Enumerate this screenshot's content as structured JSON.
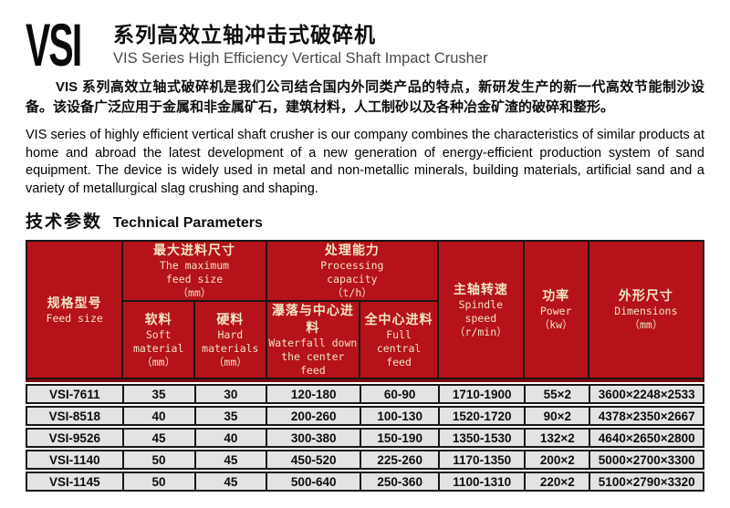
{
  "header": {
    "logo": "VSI",
    "title_zh": "系列高效立轴冲击式破碎机",
    "title_en": "VIS Series High Efficiency Vertical Shaft Impact Crusher"
  },
  "intro": {
    "zh": "VIS 系列高效立轴式破碎机是我们公司结合国内外同类产品的特点，新研发生产的新一代高效节能制沙设备。该设备广泛应用于金属和非金属矿石，建筑材料，人工制砂以及各种冶金矿渣的破碎和整形。",
    "en": "VIS series of highly efficient vertical shaft crusher is our company combines the characteristics of similar products at home and abroad the latest development of a new generation of energy-efficient production system of sand equipment. The device is widely used in metal and non-metallic minerals, building materials, artificial sand and a variety of metallurgical slag crushing and shaping."
  },
  "section": {
    "title_zh": "技术参数",
    "title_en": "Technical Parameters"
  },
  "table": {
    "headers": {
      "model": {
        "zh": "规格型号",
        "en": "Feed size"
      },
      "max_feed": {
        "zh": "最大进料尺寸",
        "en1": "The maximum",
        "en2": "feed size",
        "unit": "（mm）"
      },
      "soft": {
        "zh": "软料",
        "en1": "Soft material",
        "unit": "（mm）"
      },
      "hard": {
        "zh": "硬料",
        "en1": "Hard",
        "en2": "materials",
        "unit": "（mm）"
      },
      "capacity": {
        "zh": "处理能力",
        "en1": "Processing",
        "en2": "capacity",
        "unit": "（t/h）"
      },
      "waterfall": {
        "zh": "瀑落与中心进料",
        "en1": "Waterfall down",
        "en2": "the center feed"
      },
      "central": {
        "zh": "全中心进料",
        "en1": "Full central",
        "en2": "feed"
      },
      "spindle": {
        "zh": "主轴转速",
        "en1": "Spindle speed",
        "unit": "（r/min）"
      },
      "power": {
        "zh": "功率",
        "en1": "Power",
        "unit": "（kw）"
      },
      "dimensions": {
        "zh": "外形尺寸",
        "en1": "Dimensions",
        "unit": "（mm）"
      }
    },
    "rows": [
      [
        "VSI-7611",
        "35",
        "30",
        "120-180",
        "60-90",
        "1710-1900",
        "55×2",
        "3600×2248×2533"
      ],
      [
        "VSI-8518",
        "40",
        "35",
        "200-260",
        "100-130",
        "1520-1720",
        "90×2",
        "4378×2350×2667"
      ],
      [
        "VSI-9526",
        "45",
        "40",
        "300-380",
        "150-190",
        "1350-1530",
        "132×2",
        "4640×2650×2800"
      ],
      [
        "VSI-1140",
        "50",
        "45",
        "450-520",
        "225-260",
        "1170-1350",
        "200×2",
        "5000×2700×3300"
      ],
      [
        "VSI-1145",
        "50",
        "45",
        "500-640",
        "250-360",
        "1100-1310",
        "220×2",
        "5100×2790×3320"
      ]
    ]
  },
  "colors": {
    "table_header_bg": "#b5121a",
    "table_header_text": "#f0e4c3",
    "table_row_bg": "#e4e2e2",
    "table_border": "#161616",
    "divider_dark_red": "#7e0d10",
    "subtitle_gray": "#4a4a4a"
  }
}
